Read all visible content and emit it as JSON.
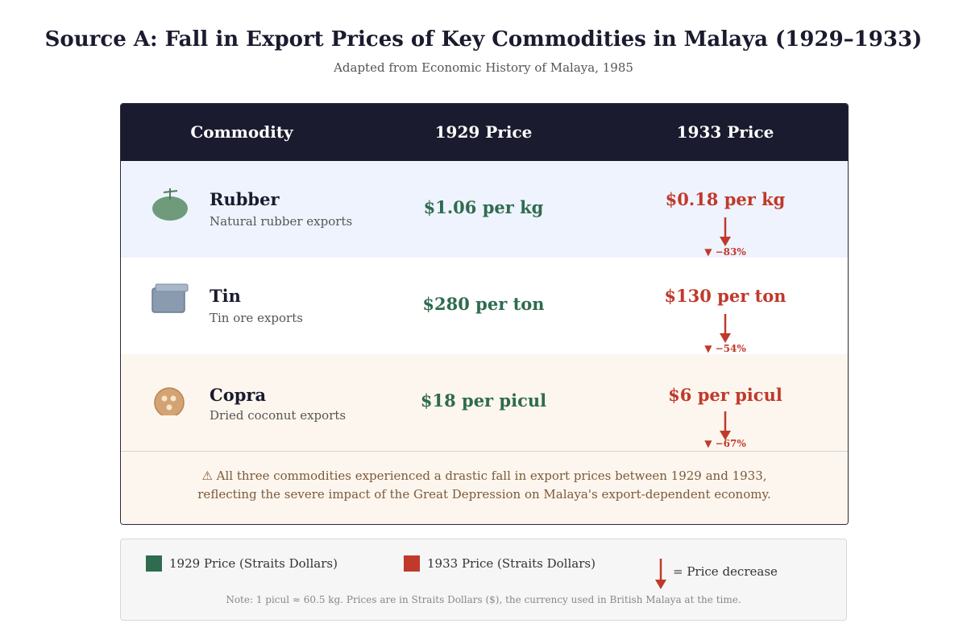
{
  "title": "Source A: Fall in Export Prices of Key Commodities in Malaya (1929–1933)",
  "subtitle": "Adapted from Economic History of Malaya, 1985",
  "table": {
    "headers": [
      "Commodity",
      "1929 Price",
      "1933 Price"
    ],
    "rows": [
      {
        "icon": "rubber-icon",
        "name": "Rubber",
        "desc": "Natural rubber exports",
        "price_1929": "$1.06 per kg",
        "price_1933": "$0.18 per kg",
        "change": "▼ −83%"
      },
      {
        "icon": "tin-icon",
        "name": "Tin",
        "desc": "Tin ore exports",
        "price_1929": "$280 per ton",
        "price_1933": "$130 per ton",
        "change": "▼ −54%"
      },
      {
        "icon": "copra-icon",
        "name": "Copra",
        "desc": "Dried coconut exports",
        "price_1929": "$18 per picul",
        "price_1933": "$6 per picul",
        "change": "▼ −67%"
      }
    ],
    "note_line1": "⚠ All three commodities experienced a drastic fall in export prices between 1929 and 1933,",
    "note_line2": "reflecting the severe impact of the Great Depression on Malaya's export-dependent economy."
  },
  "legend": {
    "item_1929": "1929 Price (Straits Dollars)",
    "item_1933": "1933 Price (Straits Dollars)",
    "item_arrow": "= Price decrease",
    "note": "Note: 1 picul ≈ 60.5 kg. Prices are in Straits Dollars ($), the currency used in British Malaya at the time."
  },
  "colors": {
    "price_1929": "#2f6b4f",
    "price_1933": "#c0392b",
    "header_bg": "#1b1b2f"
  }
}
